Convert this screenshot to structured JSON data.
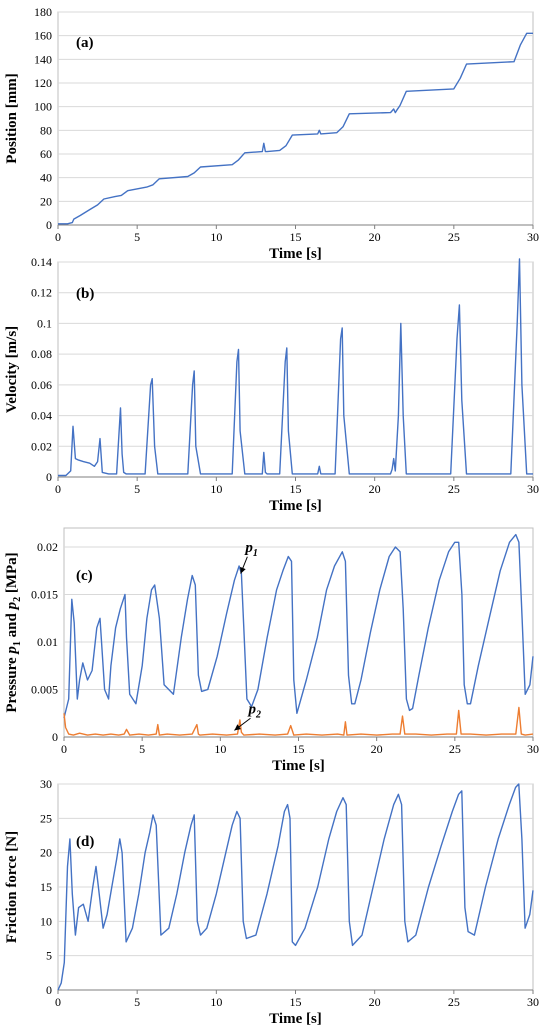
{
  "figure": {
    "panels": [
      "(a)",
      "(b)",
      "(c)",
      "(d)"
    ]
  },
  "chart_data": [
    {
      "type": "line",
      "label": "(a)",
      "xlabel": "Time [s]",
      "ylabel": "Position [mm]",
      "xlim": [
        0,
        30
      ],
      "ylim": [
        0,
        180
      ],
      "xticks": [
        0,
        5,
        10,
        15,
        20,
        25,
        30
      ],
      "yticks": [
        0,
        20,
        40,
        60,
        80,
        100,
        120,
        140,
        160,
        180
      ],
      "grid": "horizontal",
      "colors": {
        "series": "#4472c4",
        "grid": "#d9d9d9",
        "frame": "#bfbfbf"
      },
      "series": [
        {
          "x": [
            0,
            0.6,
            0.9,
            1.0,
            1.4,
            2.0,
            2.5,
            2.9,
            3.6,
            4.0,
            4.4,
            5.6,
            6.0,
            6.4,
            8.2,
            8.6,
            9.0,
            11.0,
            11.4,
            11.8,
            12.9,
            13.0,
            13.1,
            13.2,
            14.0,
            14.4,
            14.8,
            16.4,
            16.5,
            16.6,
            17.6,
            18.0,
            18.4,
            21.0,
            21.2,
            21.3,
            21.4,
            21.6,
            22.0,
            25.0,
            25.4,
            25.8,
            28.8,
            29.2,
            29.6,
            30.0
          ],
          "y": [
            1,
            1,
            2,
            5,
            8,
            13,
            17,
            22,
            24,
            25,
            29,
            32,
            34,
            39,
            41,
            44,
            49,
            51,
            55,
            61,
            62,
            69,
            62,
            62,
            63,
            67,
            76,
            77,
            80,
            77,
            78,
            83,
            94,
            95,
            98,
            95,
            97,
            101,
            113,
            115,
            124,
            136,
            138,
            152,
            162,
            162
          ]
        }
      ]
    },
    {
      "type": "line",
      "label": "(b)",
      "xlabel": "Time [s]",
      "ylabel": "Velocity [m/s]",
      "xlim": [
        0,
        30
      ],
      "ylim": [
        0,
        0.14
      ],
      "xticks": [
        0,
        5,
        10,
        15,
        20,
        25,
        30
      ],
      "yticks": [
        0,
        0.02,
        0.04,
        0.06,
        0.08,
        0.1,
        0.12,
        0.14
      ],
      "grid": "horizontal",
      "colors": {
        "series": "#4472c4",
        "grid": "#d9d9d9",
        "frame": "#bfbfbf"
      },
      "series": [
        {
          "x": [
            0,
            0.5,
            0.8,
            0.95,
            1.1,
            1.3,
            1.6,
            2.0,
            2.3,
            2.5,
            2.65,
            2.8,
            3.2,
            3.7,
            3.95,
            4.05,
            4.15,
            4.3,
            5.5,
            5.85,
            5.95,
            6.1,
            6.3,
            8.2,
            8.5,
            8.6,
            8.7,
            9.0,
            11.0,
            11.3,
            11.4,
            11.5,
            11.8,
            12.9,
            13.0,
            13.1,
            13.2,
            14.0,
            14.35,
            14.45,
            14.55,
            14.8,
            16.4,
            16.5,
            16.6,
            17.5,
            17.85,
            17.95,
            18.05,
            18.4,
            21.0,
            21.1,
            21.2,
            21.3,
            21.5,
            21.65,
            21.8,
            22.0,
            24.8,
            25.2,
            25.35,
            25.5,
            25.8,
            28.6,
            29.0,
            29.15,
            29.3,
            29.6,
            30.0
          ],
          "y": [
            0.001,
            0.001,
            0.004,
            0.033,
            0.012,
            0.011,
            0.01,
            0.009,
            0.007,
            0.01,
            0.025,
            0.003,
            0.002,
            0.002,
            0.045,
            0.015,
            0.003,
            0.002,
            0.002,
            0.06,
            0.064,
            0.02,
            0.002,
            0.002,
            0.06,
            0.069,
            0.02,
            0.002,
            0.002,
            0.075,
            0.083,
            0.03,
            0.002,
            0.002,
            0.016,
            0.003,
            0.002,
            0.002,
            0.075,
            0.084,
            0.03,
            0.002,
            0.002,
            0.007,
            0.002,
            0.002,
            0.09,
            0.097,
            0.04,
            0.002,
            0.002,
            0.005,
            0.012,
            0.004,
            0.04,
            0.1,
            0.04,
            0.002,
            0.002,
            0.09,
            0.112,
            0.05,
            0.002,
            0.002,
            0.1,
            0.142,
            0.06,
            0.002,
            0.002
          ]
        }
      ]
    },
    {
      "type": "line",
      "label": "(c)",
      "xlabel": "Time [s]",
      "ylabel": "Pressure p1 and p2 [MPa]",
      "xlim": [
        0,
        30
      ],
      "ylim": [
        0,
        0.022
      ],
      "xticks": [
        0,
        5,
        10,
        15,
        20,
        25,
        30
      ],
      "yticks": [
        0,
        0.005,
        0.01,
        0.015,
        0.02
      ],
      "ytick_labels": [
        "0",
        "0.005",
        "0.01",
        "0.015",
        "0.02"
      ],
      "grid": "horizontal",
      "colors": {
        "p1": "#4472c4",
        "p2": "#ed7d31",
        "grid": "#d9d9d9",
        "frame": "#bfbfbf",
        "annotation": "#000000"
      },
      "annotations": [
        {
          "text": "p",
          "subscript": "1",
          "x": 11.6,
          "y": 0.0195,
          "arrow_to": [
            11.3,
            0.0172
          ]
        },
        {
          "text": "p",
          "subscript": "2",
          "x": 11.8,
          "y": 0.0025,
          "arrow_to": [
            10.9,
            0.0007
          ]
        }
      ],
      "series": [
        {
          "name": "p1",
          "x": [
            0,
            0.3,
            0.5,
            0.65,
            0.85,
            1.0,
            1.2,
            1.5,
            1.8,
            2.1,
            2.3,
            2.6,
            2.85,
            3.0,
            3.3,
            3.6,
            3.9,
            4.0,
            4.2,
            4.6,
            5.0,
            5.3,
            5.6,
            5.8,
            6.1,
            6.4,
            7.0,
            7.5,
            7.9,
            8.2,
            8.4,
            8.6,
            8.8,
            9.2,
            9.8,
            10.4,
            10.9,
            11.2,
            11.35,
            11.5,
            11.7,
            12.0,
            12.4,
            13.0,
            13.6,
            14.0,
            14.35,
            14.55,
            14.7,
            14.9,
            15.5,
            16.2,
            16.8,
            17.3,
            17.8,
            18.0,
            18.2,
            18.4,
            18.6,
            19.0,
            19.6,
            20.2,
            20.8,
            21.2,
            21.5,
            21.7,
            21.9,
            22.1,
            22.3,
            22.7,
            23.3,
            24.0,
            24.6,
            25.0,
            25.25,
            25.45,
            25.6,
            25.8,
            26.0,
            26.5,
            27.2,
            27.9,
            28.5,
            28.9,
            29.1,
            29.3,
            29.5,
            29.8,
            30.0
          ],
          "y": [
            0.002,
            0.004,
            0.0145,
            0.012,
            0.004,
            0.006,
            0.0078,
            0.006,
            0.007,
            0.0115,
            0.0125,
            0.005,
            0.004,
            0.0075,
            0.0115,
            0.0135,
            0.015,
            0.0105,
            0.0045,
            0.0035,
            0.0075,
            0.0125,
            0.0155,
            0.016,
            0.0125,
            0.0055,
            0.0045,
            0.0105,
            0.0145,
            0.017,
            0.016,
            0.0065,
            0.0048,
            0.005,
            0.0085,
            0.013,
            0.0165,
            0.018,
            0.0172,
            0.0115,
            0.004,
            0.0032,
            0.005,
            0.0105,
            0.0155,
            0.0175,
            0.019,
            0.0185,
            0.006,
            0.0025,
            0.006,
            0.0105,
            0.0155,
            0.018,
            0.0195,
            0.0185,
            0.0065,
            0.0035,
            0.0035,
            0.006,
            0.011,
            0.0155,
            0.019,
            0.02,
            0.0195,
            0.0135,
            0.004,
            0.0028,
            0.003,
            0.0065,
            0.0115,
            0.0165,
            0.0195,
            0.0205,
            0.0205,
            0.015,
            0.0055,
            0.0035,
            0.0035,
            0.0075,
            0.0125,
            0.0175,
            0.0205,
            0.0213,
            0.0205,
            0.0125,
            0.0045,
            0.0055,
            0.0085
          ]
        },
        {
          "name": "p2",
          "x": [
            0,
            0.1,
            0.3,
            0.6,
            1.0,
            1.5,
            2.0,
            2.5,
            3.0,
            3.5,
            3.85,
            4.0,
            4.2,
            4.8,
            5.4,
            5.9,
            6.0,
            6.1,
            6.6,
            7.4,
            8.2,
            8.5,
            8.6,
            8.7,
            9.5,
            10.4,
            11.1,
            11.25,
            11.35,
            11.5,
            12.5,
            13.5,
            14.3,
            14.5,
            14.7,
            15.5,
            16.5,
            17.5,
            17.9,
            18.0,
            18.1,
            19.0,
            20.0,
            21.0,
            21.5,
            21.65,
            21.8,
            22.5,
            23.5,
            24.5,
            25.1,
            25.25,
            25.4,
            26.0,
            27.0,
            28.0,
            28.9,
            29.1,
            29.25,
            29.5,
            30.0
          ],
          "y": [
            0.0025,
            0.001,
            0.0003,
            0.0002,
            0.0004,
            0.0002,
            0.0003,
            0.0002,
            0.0003,
            0.0002,
            0.0003,
            0.0008,
            0.0002,
            0.0003,
            0.0002,
            0.0003,
            0.0013,
            0.0002,
            0.0003,
            0.0002,
            0.0003,
            0.0013,
            0.0003,
            0.0002,
            0.0003,
            0.0002,
            0.0003,
            0.0018,
            0.0005,
            0.0002,
            0.0003,
            0.0002,
            0.0003,
            0.0012,
            0.0002,
            0.0003,
            0.0002,
            0.0003,
            0.0002,
            0.0016,
            0.0002,
            0.0003,
            0.0002,
            0.0003,
            0.0003,
            0.0022,
            0.0003,
            0.0003,
            0.0002,
            0.0003,
            0.0003,
            0.0028,
            0.0003,
            0.0003,
            0.0002,
            0.0003,
            0.0003,
            0.0031,
            0.0003,
            0.0002,
            0.0003
          ]
        }
      ]
    },
    {
      "type": "line",
      "label": "(d)",
      "xlabel": "Time [s]",
      "ylabel": "Friction force [N]",
      "xlim": [
        0,
        30
      ],
      "ylim": [
        0,
        30
      ],
      "xticks": [
        0,
        5,
        10,
        15,
        20,
        25,
        30
      ],
      "yticks": [
        0,
        5,
        10,
        15,
        20,
        25,
        30
      ],
      "grid": "horizontal",
      "colors": {
        "series": "#4472c4",
        "grid": "#d9d9d9",
        "frame": "#bfbfbf"
      },
      "series": [
        {
          "x": [
            0,
            0.2,
            0.4,
            0.6,
            0.75,
            0.9,
            1.1,
            1.3,
            1.6,
            1.9,
            2.2,
            2.4,
            2.6,
            2.85,
            3.1,
            3.4,
            3.7,
            3.9,
            4.05,
            4.3,
            4.7,
            5.1,
            5.5,
            5.8,
            6.0,
            6.2,
            6.5,
            7.0,
            7.5,
            8.0,
            8.4,
            8.6,
            8.8,
            9.0,
            9.4,
            10.0,
            10.6,
            11.0,
            11.3,
            11.5,
            11.7,
            11.9,
            12.5,
            13.2,
            13.9,
            14.3,
            14.5,
            14.65,
            14.8,
            15.0,
            15.6,
            16.4,
            17.1,
            17.6,
            18.0,
            18.2,
            18.4,
            18.6,
            19.2,
            19.9,
            20.6,
            21.2,
            21.5,
            21.7,
            21.9,
            22.1,
            22.6,
            23.4,
            24.2,
            24.9,
            25.3,
            25.5,
            25.7,
            25.9,
            26.3,
            27.0,
            27.8,
            28.5,
            28.9,
            29.1,
            29.3,
            29.5,
            29.8,
            30.0
          ],
          "y": [
            0,
            1,
            4,
            18,
            22,
            14,
            8,
            12,
            12.5,
            10,
            15,
            18,
            14,
            9,
            11,
            15,
            19,
            22,
            20,
            7,
            9,
            14,
            20,
            23,
            25.5,
            24,
            8,
            9,
            14,
            20,
            24,
            25.5,
            10,
            8,
            9,
            14,
            20,
            24,
            26,
            25,
            10,
            7.5,
            8,
            14,
            21,
            26,
            27,
            25,
            7,
            6.5,
            9,
            15,
            22,
            26,
            28,
            27,
            10,
            6.5,
            8,
            15,
            22,
            27,
            28.5,
            27,
            10,
            7,
            8,
            15,
            21,
            26,
            28.5,
            29,
            12,
            8.5,
            8,
            15,
            22,
            27,
            29.5,
            30,
            22,
            9,
            11,
            14.5
          ]
        }
      ]
    }
  ]
}
